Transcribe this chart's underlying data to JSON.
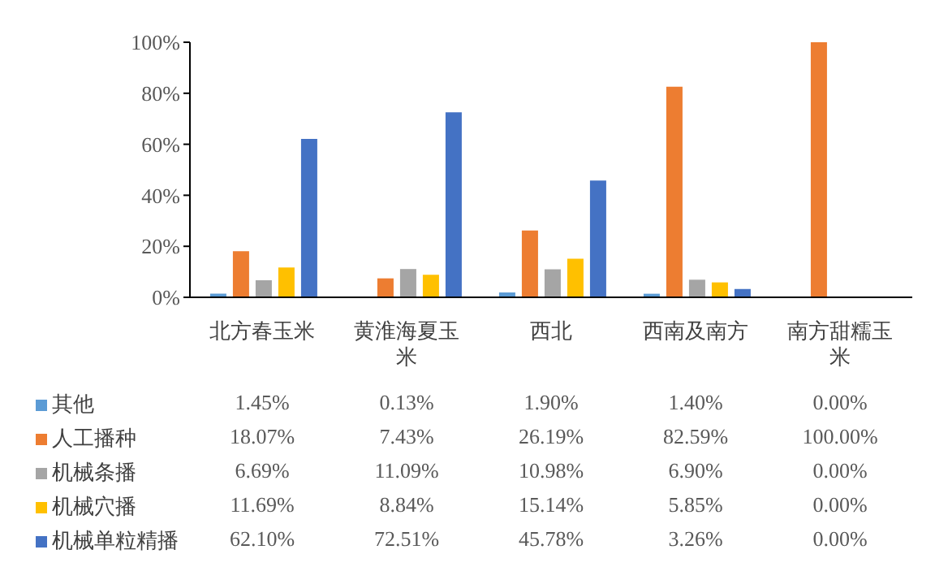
{
  "chart_data": {
    "type": "bar",
    "categories": [
      "北方春玉米",
      "黄淮海夏玉米",
      "西北",
      "西南及南方",
      "南方甜糯玉米"
    ],
    "series": [
      {
        "name": "其他",
        "color": "#5b9bd5",
        "values": [
          1.45,
          0.13,
          1.9,
          1.4,
          0
        ],
        "value_labels": [
          "1.45%",
          "0.13%",
          "1.90%",
          "1.40%",
          "0.00%"
        ]
      },
      {
        "name": "人工播种",
        "color": "#ed7d31",
        "values": [
          18.07,
          7.43,
          26.19,
          82.59,
          100
        ],
        "value_labels": [
          "18.07%",
          "7.43%",
          "26.19%",
          "82.59%",
          "100.00%"
        ]
      },
      {
        "name": "机械条播",
        "color": "#a5a5a5",
        "values": [
          6.69,
          11.09,
          10.98,
          6.9,
          0
        ],
        "value_labels": [
          "6.69%",
          "11.09%",
          "10.98%",
          "6.90%",
          "0.00%"
        ]
      },
      {
        "name": "机械穴播",
        "color": "#ffc000",
        "values": [
          11.69,
          8.84,
          15.14,
          5.85,
          0
        ],
        "value_labels": [
          "11.69%",
          "8.84%",
          "15.14%",
          "5.85%",
          "0.00%"
        ]
      },
      {
        "name": "机械单粒精播",
        "color": "#4472c4",
        "values": [
          62.1,
          72.51,
          45.78,
          3.26,
          0
        ],
        "value_labels": [
          "62.10%",
          "72.51%",
          "45.78%",
          "3.26%",
          "0.00%"
        ]
      }
    ],
    "ylim": [
      0,
      100
    ],
    "yticks": [
      {
        "value": 0,
        "label": "0%"
      },
      {
        "value": 20,
        "label": "20%"
      },
      {
        "value": 40,
        "label": "40%"
      },
      {
        "value": 60,
        "label": "60%"
      },
      {
        "value": 80,
        "label": "80%"
      },
      {
        "value": 100,
        "label": "100%"
      }
    ],
    "grid": false,
    "legend": "bottom"
  }
}
